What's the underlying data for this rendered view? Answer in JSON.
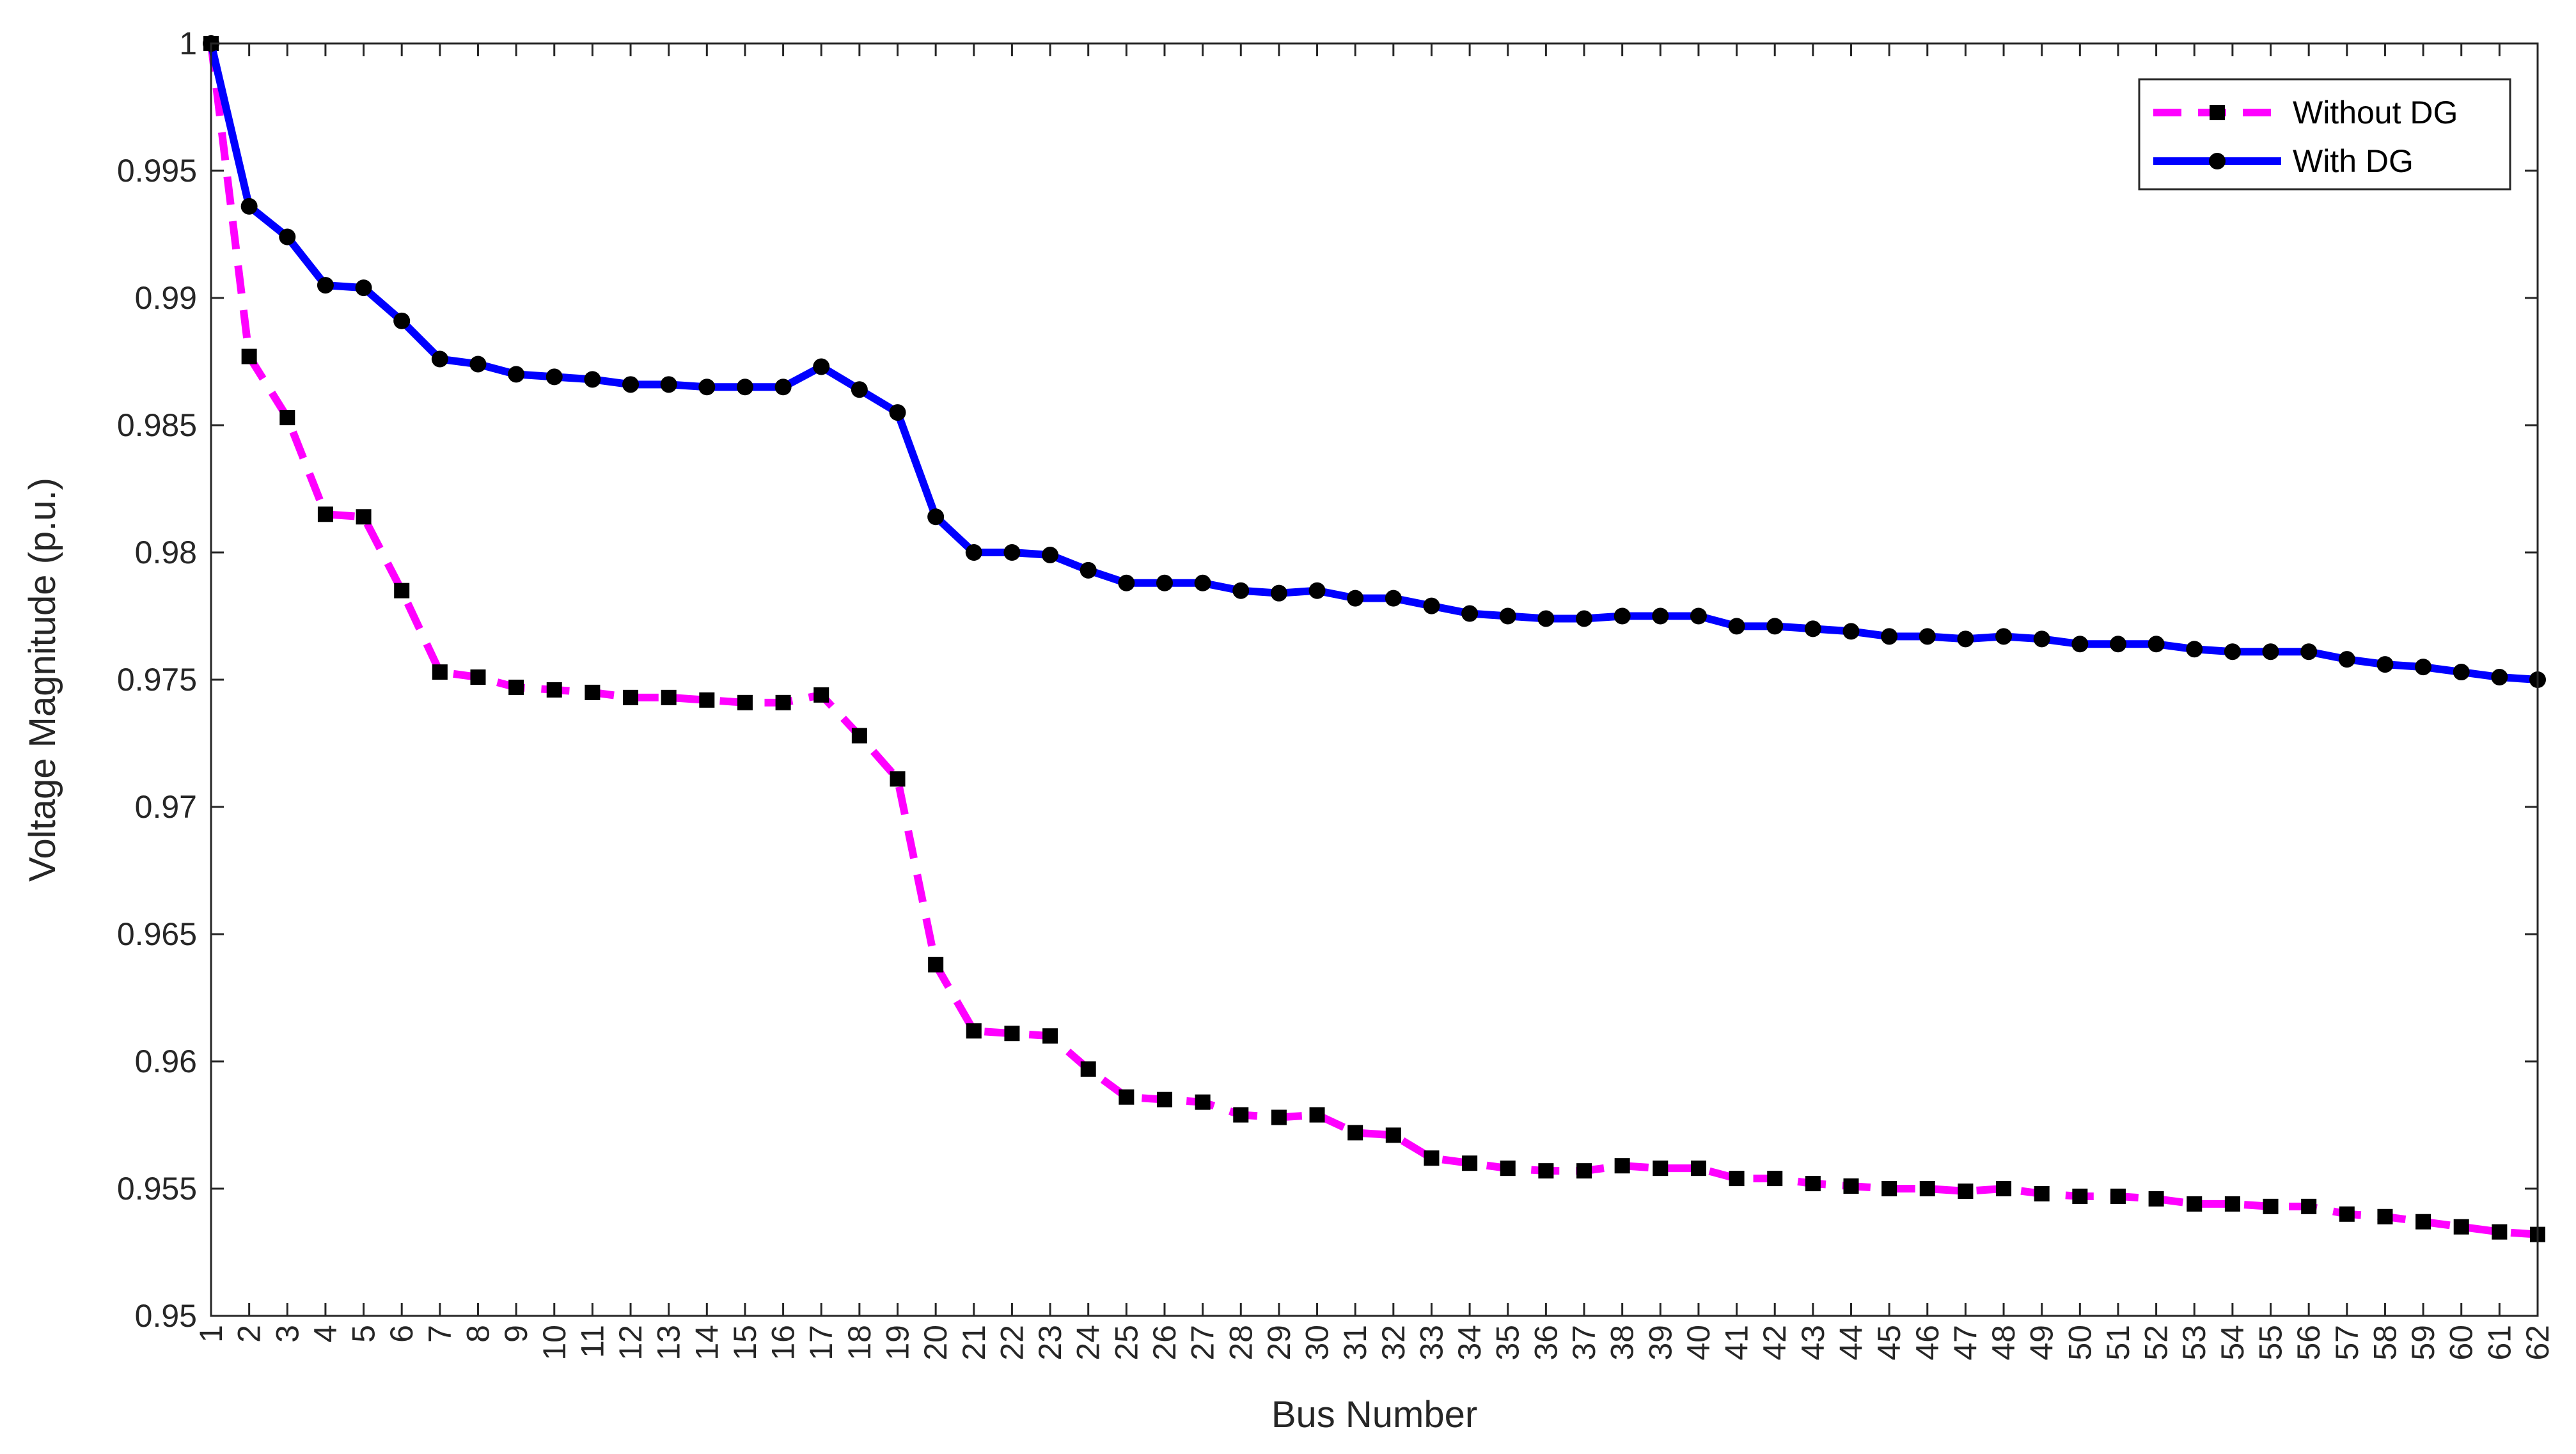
{
  "chart_data": {
    "type": "line",
    "title": "",
    "xlabel": "Bus Number",
    "ylabel": "Voltage Magnitude (p.u.)",
    "xlim": [
      1,
      62
    ],
    "ylim": [
      0.95,
      1
    ],
    "y_ticks": [
      0.95,
      0.955,
      0.96,
      0.965,
      0.97,
      0.975,
      0.98,
      0.985,
      0.99,
      0.995,
      1
    ],
    "y_tick_labels": [
      "0.95",
      "0.955",
      "0.96",
      "0.965",
      "0.97",
      "0.975",
      "0.98",
      "0.985",
      "0.99",
      "0.995",
      "1"
    ],
    "x": [
      1,
      2,
      3,
      4,
      5,
      6,
      7,
      8,
      9,
      10,
      11,
      12,
      13,
      14,
      15,
      16,
      17,
      18,
      19,
      20,
      21,
      22,
      23,
      24,
      25,
      26,
      27,
      28,
      29,
      30,
      31,
      32,
      33,
      34,
      35,
      36,
      37,
      38,
      39,
      40,
      41,
      42,
      43,
      44,
      45,
      46,
      47,
      48,
      49,
      50,
      51,
      52,
      53,
      54,
      55,
      56,
      57,
      58,
      59,
      60,
      61,
      62
    ],
    "x_tick_labels": [
      "1",
      "2",
      "3",
      "4",
      "5",
      "6",
      "7",
      "8",
      "9",
      "10",
      "11",
      "12",
      "13",
      "14",
      "15",
      "16",
      "17",
      "18",
      "19",
      "20",
      "21",
      "22",
      "23",
      "24",
      "25",
      "26",
      "27",
      "28",
      "29",
      "30",
      "31",
      "32",
      "33",
      "34",
      "35",
      "36",
      "37",
      "38",
      "39",
      "40",
      "41",
      "42",
      "43",
      "44",
      "45",
      "46",
      "47",
      "48",
      "49",
      "50",
      "51",
      "52",
      "53",
      "54",
      "55",
      "56",
      "57",
      "58",
      "59",
      "60",
      "61",
      "62"
    ],
    "grid": false,
    "legend_position": "top-right",
    "series": [
      {
        "name": "Without DG",
        "color": "#ff00ff",
        "marker_color": "#000000",
        "line_style": "dashed",
        "marker": "square",
        "values": [
          1.0,
          0.9877,
          0.9853,
          0.9815,
          0.9814,
          0.9785,
          0.9753,
          0.9751,
          0.9747,
          0.9746,
          0.9745,
          0.9743,
          0.9743,
          0.9742,
          0.9741,
          0.9741,
          0.9744,
          0.9728,
          0.9711,
          0.9638,
          0.9612,
          0.9611,
          0.961,
          0.9597,
          0.9586,
          0.9585,
          0.9584,
          0.9579,
          0.9578,
          0.9579,
          0.9572,
          0.9571,
          0.9562,
          0.956,
          0.9558,
          0.9557,
          0.9557,
          0.9559,
          0.9558,
          0.9558,
          0.9554,
          0.9554,
          0.9552,
          0.9551,
          0.955,
          0.955,
          0.9549,
          0.955,
          0.9548,
          0.9547,
          0.9547,
          0.9546,
          0.9544,
          0.9544,
          0.9543,
          0.9543,
          0.954,
          0.9539,
          0.9537,
          0.9535,
          0.9533,
          0.9532
        ]
      },
      {
        "name": "With DG",
        "color": "#0000ff",
        "marker_color": "#000000",
        "line_style": "solid",
        "marker": "circle",
        "values": [
          1.0,
          0.9936,
          0.9924,
          0.9905,
          0.9904,
          0.9891,
          0.9876,
          0.9874,
          0.987,
          0.9869,
          0.9868,
          0.9866,
          0.9866,
          0.9865,
          0.9865,
          0.9865,
          0.9873,
          0.9864,
          0.9855,
          0.9814,
          0.98,
          0.98,
          0.9799,
          0.9793,
          0.9788,
          0.9788,
          0.9788,
          0.9785,
          0.9784,
          0.9785,
          0.9782,
          0.9782,
          0.9779,
          0.9776,
          0.9775,
          0.9774,
          0.9774,
          0.9775,
          0.9775,
          0.9775,
          0.9771,
          0.9771,
          0.977,
          0.9769,
          0.9767,
          0.9767,
          0.9766,
          0.9767,
          0.9766,
          0.9764,
          0.9764,
          0.9764,
          0.9762,
          0.9761,
          0.9761,
          0.9761,
          0.9758,
          0.9756,
          0.9755,
          0.9753,
          0.9751,
          0.975
        ]
      }
    ]
  }
}
